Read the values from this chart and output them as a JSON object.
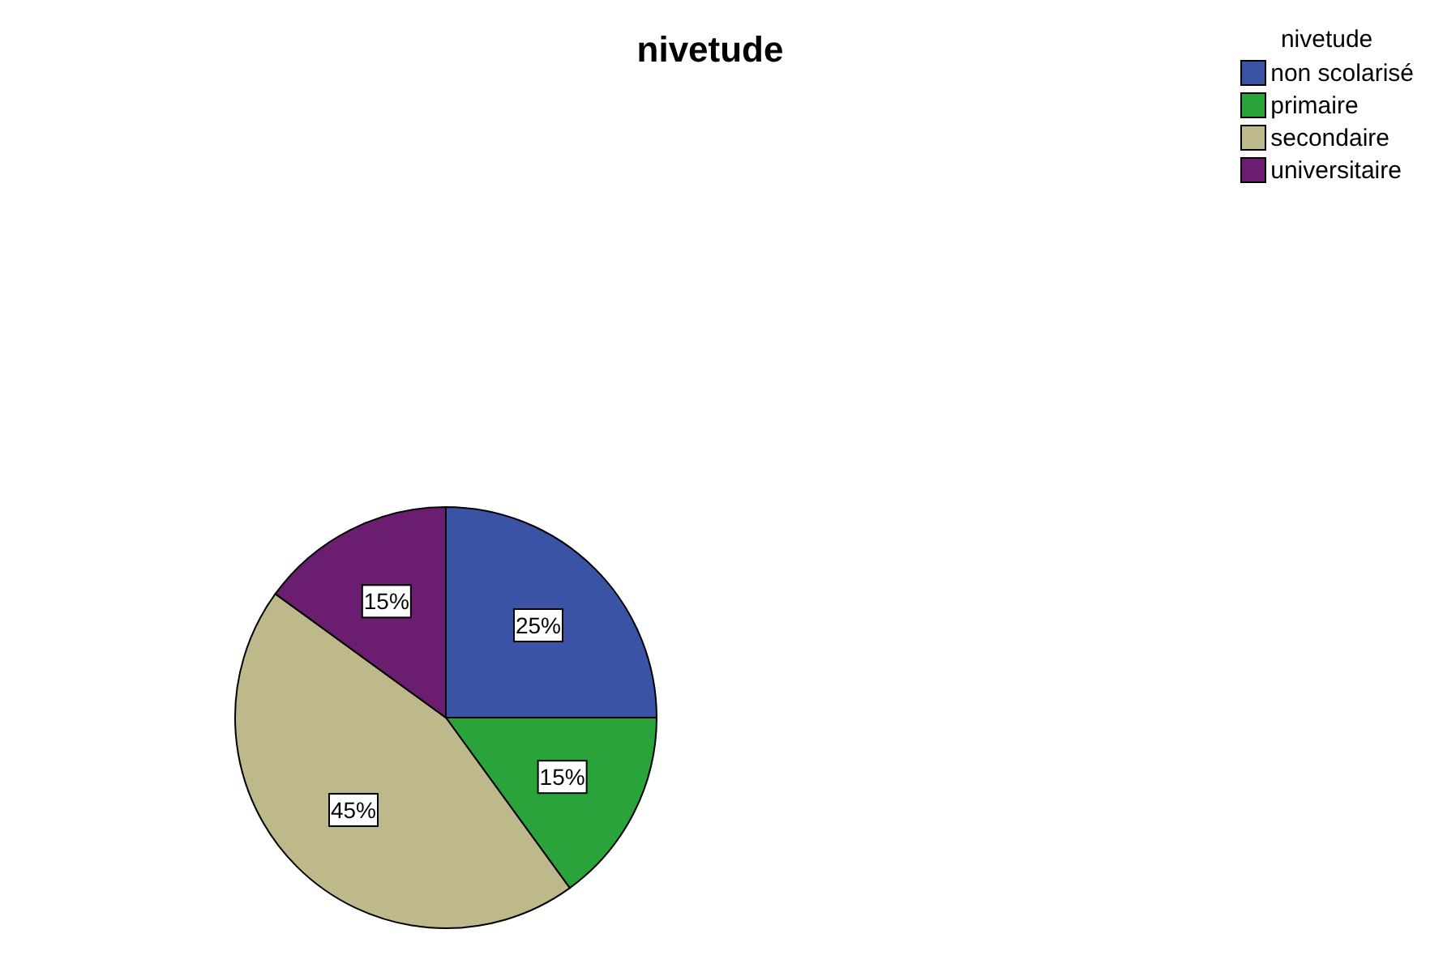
{
  "chart_data": {
    "type": "pie",
    "title": "nivetude",
    "legend_title": "nivetude",
    "legend": "top right",
    "value_labels": [
      "25%",
      "15%",
      "45%",
      "15%"
    ],
    "categories": [
      "non scolarisé",
      "primaire",
      "secondaire",
      "universitaire"
    ],
    "values": [
      25,
      15,
      45,
      15
    ],
    "colors": [
      "#3b53a4",
      "#2aa43a",
      "#bdb98a",
      "#6b1e6f"
    ]
  }
}
